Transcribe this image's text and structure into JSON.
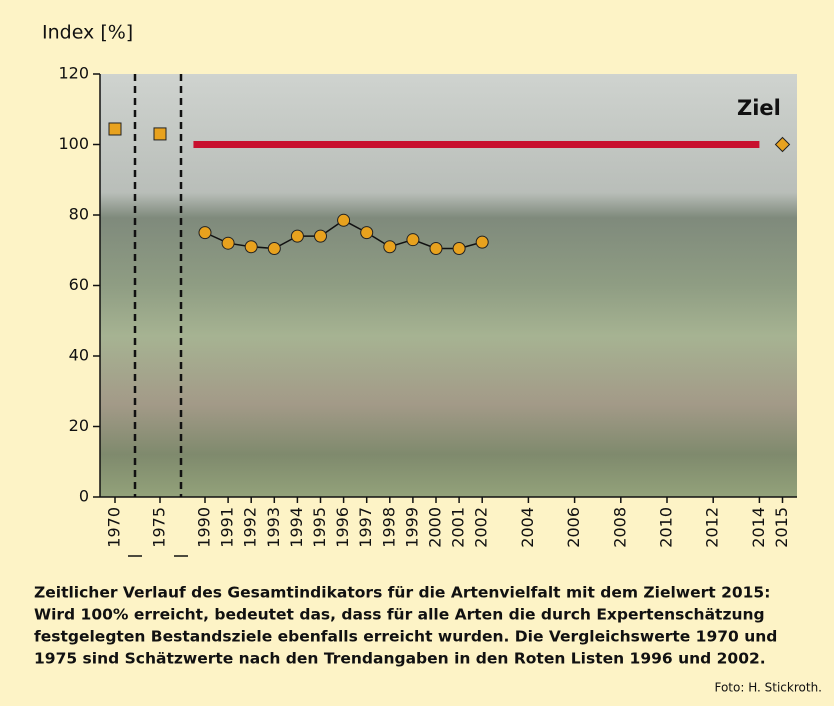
{
  "chart_data": {
    "type": "line",
    "ylabel": "Index [%]",
    "ylim": [
      0,
      120
    ],
    "yticks": [
      0,
      20,
      40,
      60,
      80,
      100,
      120
    ],
    "xlim": [
      1968,
      2016
    ],
    "xticks": [
      1970,
      1975,
      1990,
      1991,
      1992,
      1993,
      1994,
      1995,
      1996,
      1997,
      1998,
      1999,
      2000,
      2001,
      2002,
      2004,
      2006,
      2008,
      2010,
      2012,
      2014,
      2015
    ],
    "series": [
      {
        "x": [
          1990,
          1991,
          1992,
          1993,
          1994,
          1995,
          1996,
          1997,
          1998,
          1999,
          2000,
          2001,
          2002
        ],
        "values": [
          75,
          72,
          71,
          70.5,
          74,
          74,
          78.5,
          75,
          71,
          73,
          70.5,
          70.5,
          72.3
        ],
        "color": "#e8a21e"
      }
    ],
    "estimates": {
      "x": [
        1970,
        1975
      ],
      "values": [
        104.4,
        103
      ],
      "color": "#e8a21e"
    },
    "target": {
      "label": "Ziel",
      "x": 2015,
      "value": 100,
      "line_x": [
        1989.5,
        2014
      ],
      "line_color": "#c8102e",
      "color": "#e8a21e"
    }
  },
  "caption": [
    "Zeitlicher Verlauf des Gesamtindikators für die Artenvielfalt mit dem Zielwert 2015:",
    "Wird 100% erreicht, bedeutet das, dass für alle Arten die durch Expertenschätzung",
    "festgelegten Bestandsziele ebenfalls erreicht wurden. Die Vergleichswerte 1970 und",
    "1975 sind Schätzwerte nach den Trendangaben in den Roten Listen 1996 und 2002."
  ],
  "credit": "Foto: H. Stickroth."
}
